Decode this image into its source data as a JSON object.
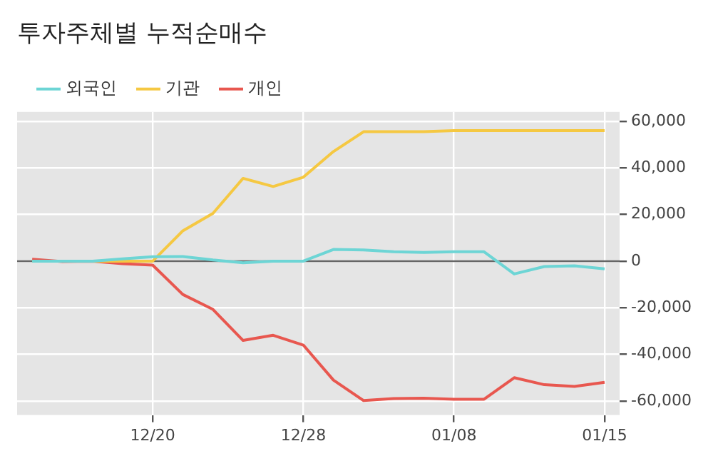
{
  "chart_data": {
    "type": "line",
    "title": "투자주체별 누적순매수",
    "categories": [
      null,
      null,
      null,
      null,
      "12/20",
      null,
      null,
      null,
      null,
      "12/28",
      null,
      null,
      null,
      null,
      "01/08",
      null,
      null,
      null,
      null,
      "01/15"
    ],
    "series": [
      {
        "name": "외국인",
        "color": "#6dd5d5",
        "values": [
          0,
          0,
          0,
          1000,
          1900,
          2000,
          500,
          -700,
          0,
          0,
          5000,
          4800,
          4000,
          3700,
          4000,
          4000,
          -5500,
          -2300,
          -2000,
          -3300
        ]
      },
      {
        "name": "기관",
        "color": "#f5c842",
        "values": [
          0,
          0,
          0,
          0,
          0,
          13000,
          20500,
          35500,
          32000,
          36000,
          47000,
          55500,
          55500,
          55500,
          56000,
          56000,
          56000,
          56000,
          56000,
          56000
        ]
      },
      {
        "name": "개인",
        "color": "#e8574f",
        "values": [
          800,
          -200,
          0,
          -1100,
          -1700,
          -14300,
          -20700,
          -34000,
          -31800,
          -36000,
          -51000,
          -59800,
          -58900,
          -58800,
          -59200,
          -59200,
          -50000,
          -53000,
          -53700,
          -52000
        ]
      }
    ],
    "ylim": [
      -66000,
      64000
    ],
    "yticks": [
      {
        "value": -60000,
        "label": "-60,000"
      },
      {
        "value": -40000,
        "label": "-40,000"
      },
      {
        "value": -20000,
        "label": "-20,000"
      },
      {
        "value": 0,
        "label": "0"
      },
      {
        "value": 20000,
        "label": "20,000"
      },
      {
        "value": 40000,
        "label": "40,000"
      },
      {
        "value": 60000,
        "label": "60,000"
      }
    ],
    "ref_lines": [
      {
        "axis": "y",
        "value": 0,
        "color": "#666666"
      }
    ],
    "grid": true,
    "legend": "top left",
    "marker": "none",
    "line_style": "solid"
  }
}
